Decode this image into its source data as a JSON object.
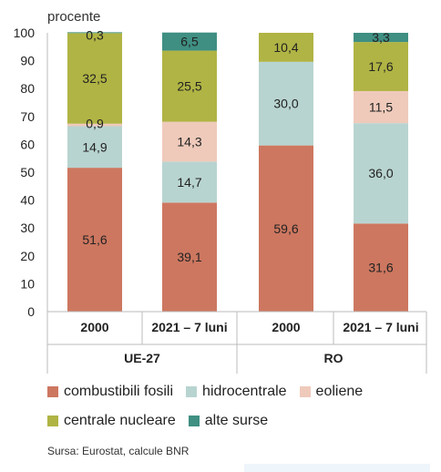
{
  "chart_data": {
    "type": "bar",
    "stacked": true,
    "unit_label": "procente",
    "ylim": [
      0,
      100
    ],
    "yticks": [
      0,
      10,
      20,
      30,
      40,
      50,
      60,
      70,
      80,
      90,
      100
    ],
    "categories": [
      "2000",
      "2021 – 7 luni",
      "2000",
      "2021 – 7 luni"
    ],
    "groups": [
      {
        "label": "UE-27",
        "categories": [
          0,
          1
        ]
      },
      {
        "label": "RO",
        "categories": [
          2,
          3
        ]
      }
    ],
    "series": [
      {
        "name": "combustibili fosili",
        "color": "#cd7760",
        "values": [
          51.6,
          39.1,
          59.6,
          31.6
        ],
        "labels": [
          "51,6",
          "39,1",
          "59,6",
          "31,6"
        ]
      },
      {
        "name": "hidrocentrale",
        "color": "#b8d4d0",
        "values": [
          14.9,
          14.7,
          30.0,
          36.0
        ],
        "labels": [
          "14,9",
          "14,7",
          "30,0",
          "36,0"
        ]
      },
      {
        "name": "eoliene",
        "color": "#efcabb",
        "values": [
          0.9,
          14.3,
          0,
          11.5
        ],
        "labels": [
          "0,9",
          "14,3",
          "",
          "11,5"
        ]
      },
      {
        "name": "centrale nucleare",
        "color": "#b0b444",
        "values": [
          32.5,
          25.5,
          10.4,
          17.6
        ],
        "labels": [
          "32,5",
          "25,5",
          "10,4",
          "17,6"
        ]
      },
      {
        "name": "alte surse",
        "color": "#3f8f82",
        "values": [
          0.3,
          6.5,
          0,
          3.3
        ],
        "labels": [
          "0,3",
          "6,5",
          "",
          "3,3"
        ]
      }
    ],
    "grid": false,
    "legend_position": "bottom"
  },
  "source": "Sursa: Eurostat, calcule BNR"
}
